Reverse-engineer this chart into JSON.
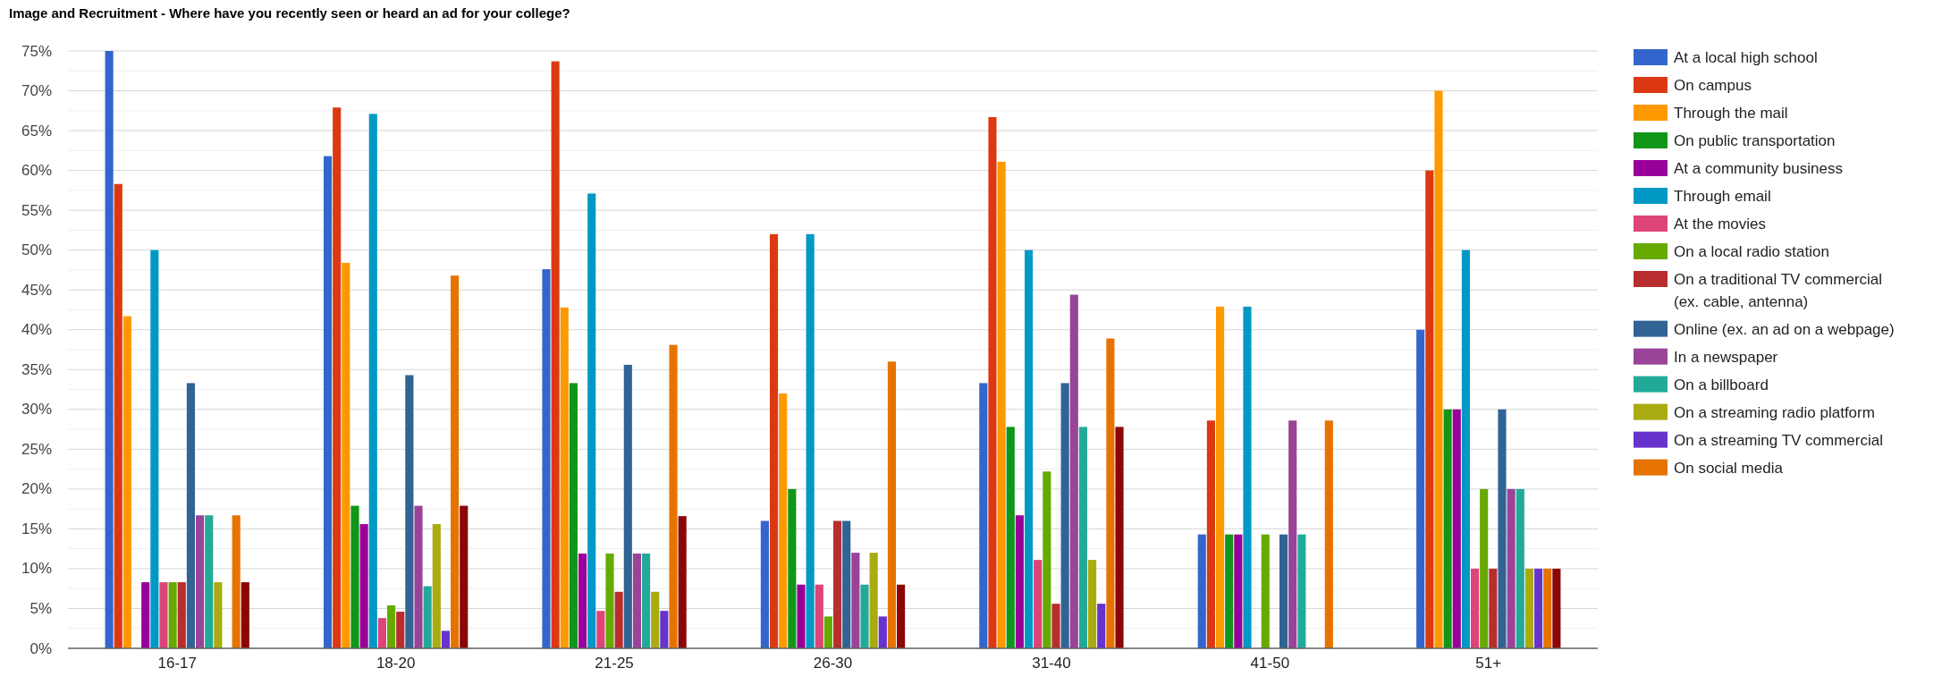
{
  "chart_data": {
    "type": "bar",
    "title": "Image and Recruitment - Where have you recently seen or heard an ad for your college?",
    "categories": [
      "16-17",
      "18-20",
      "21-25",
      "26-30",
      "31-40",
      "41-50",
      "51+"
    ],
    "series": [
      {
        "name": "At a local high school",
        "color": "#3366cc",
        "values": [
          75,
          61.8,
          47.6,
          16,
          33.3,
          14.3,
          40
        ]
      },
      {
        "name": "On campus",
        "color": "#dc3912",
        "values": [
          58.3,
          67.9,
          73.7,
          52,
          66.7,
          28.6,
          60
        ]
      },
      {
        "name": "Through the mail",
        "color": "#ff9900",
        "values": [
          41.7,
          48.4,
          42.8,
          32,
          61.1,
          42.9,
          70
        ]
      },
      {
        "name": "On public transportation",
        "color": "#109618",
        "values": [
          0,
          17.9,
          33.3,
          20,
          27.8,
          14.3,
          30
        ]
      },
      {
        "name": "At a community business",
        "color": "#990099",
        "values": [
          8.3,
          15.6,
          11.9,
          8,
          16.7,
          14.3,
          30
        ]
      },
      {
        "name": "Through email",
        "color": "#0099c6",
        "values": [
          50,
          67.1,
          57.1,
          52,
          50,
          42.9,
          50
        ]
      },
      {
        "name": "At the movies",
        "color": "#dd4477",
        "values": [
          8.3,
          3.8,
          4.7,
          8,
          11.1,
          0,
          10
        ]
      },
      {
        "name": "On a local radio station",
        "color": "#66aa00",
        "values": [
          8.3,
          5.4,
          11.9,
          4,
          22.2,
          14.3,
          20
        ]
      },
      {
        "name": "On a traditional TV commercial (ex. cable, antenna)",
        "color": "#b82e2e",
        "values": [
          8.3,
          4.6,
          7.1,
          16,
          5.6,
          0,
          10
        ]
      },
      {
        "name": "Online (ex. an ad on a webpage)",
        "color": "#316395",
        "values": [
          33.3,
          34.3,
          35.6,
          16,
          33.3,
          14.3,
          30
        ]
      },
      {
        "name": "In a newspaper",
        "color": "#994499",
        "values": [
          16.7,
          17.9,
          11.9,
          12,
          44.4,
          28.6,
          20
        ]
      },
      {
        "name": "On a billboard",
        "color": "#22aa99",
        "values": [
          16.7,
          7.8,
          11.9,
          8,
          27.8,
          14.3,
          20
        ]
      },
      {
        "name": "On a streaming radio platform",
        "color": "#aaaa11",
        "values": [
          8.3,
          15.6,
          7.1,
          12,
          11.1,
          0,
          10
        ]
      },
      {
        "name": "On a streaming TV commercial",
        "color": "#6633cc",
        "values": [
          0,
          2.2,
          4.7,
          4,
          5.6,
          0,
          10
        ]
      },
      {
        "name": "On social media",
        "color": "#e67300",
        "values": [
          16.7,
          46.8,
          38.1,
          36,
          38.9,
          28.6,
          10
        ]
      },
      {
        "color": "#8b0707",
        "values": [
          8.3,
          17.9,
          16.6,
          8,
          27.8,
          0,
          10
        ]
      }
    ],
    "ylim": [
      0,
      75
    ],
    "yticks": [
      {
        "value": 0,
        "label": "0%"
      },
      {
        "value": 5,
        "label": "5%"
      },
      {
        "value": 10,
        "label": "10%"
      },
      {
        "value": 15,
        "label": "15%"
      },
      {
        "value": 20,
        "label": "20%"
      },
      {
        "value": 25,
        "label": "25%"
      },
      {
        "value": 30,
        "label": "30%"
      },
      {
        "value": 35,
        "label": "35%"
      },
      {
        "value": 40,
        "label": "40%"
      },
      {
        "value": 45,
        "label": "45%"
      },
      {
        "value": 50,
        "label": "50%"
      },
      {
        "value": 55,
        "label": "55%"
      },
      {
        "value": 60,
        "label": "60%"
      },
      {
        "value": 65,
        "label": "65%"
      },
      {
        "value": 70,
        "label": "70%"
      },
      {
        "value": 75,
        "label": "75%"
      }
    ],
    "grid": true,
    "legend": "right"
  }
}
